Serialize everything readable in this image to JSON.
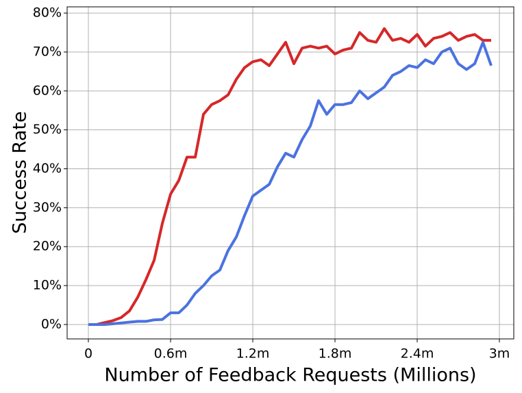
{
  "chart_data": {
    "type": "line",
    "xlabel": "Number of Feedback Requests (Millions)",
    "ylabel": "Success Rate",
    "x": [
      0,
      0.06,
      0.12,
      0.18,
      0.24,
      0.3,
      0.36,
      0.42,
      0.48,
      0.54,
      0.6,
      0.66,
      0.72,
      0.78,
      0.84,
      0.9,
      0.96,
      1.02,
      1.08,
      1.14,
      1.2,
      1.26,
      1.32,
      1.38,
      1.44,
      1.5,
      1.56,
      1.62,
      1.68,
      1.74,
      1.8,
      1.86,
      1.92,
      1.98,
      2.04,
      2.1,
      2.16,
      2.22,
      2.28,
      2.34,
      2.4,
      2.46,
      2.52,
      2.58,
      2.64,
      2.7,
      2.76,
      2.82,
      2.88,
      2.94
    ],
    "series": [
      {
        "color": "#d62728",
        "values": [
          0,
          0,
          0.5,
          1,
          1.8,
          3.5,
          7,
          11.5,
          16.5,
          26,
          33.5,
          37,
          43,
          43,
          54,
          56.5,
          57.5,
          59,
          63,
          66,
          67.5,
          68,
          66.5,
          69.5,
          72.5,
          67,
          71,
          71.5,
          71,
          71.5,
          69.5,
          70.5,
          71,
          75,
          73,
          72.5,
          76,
          73,
          73.5,
          72.5,
          74.5,
          71.5,
          73.5,
          74,
          75,
          73,
          74,
          74.5,
          73,
          73
        ]
      },
      {
        "color": "#4b72e0",
        "values": [
          0,
          0,
          0,
          0.2,
          0.4,
          0.6,
          0.8,
          0.8,
          1.2,
          1.3,
          3,
          3,
          5,
          8,
          10,
          12.5,
          14,
          19,
          22.5,
          28,
          33,
          34.5,
          36,
          40.5,
          44,
          43,
          47.5,
          51,
          57.5,
          54,
          56.5,
          56.5,
          57,
          60,
          58,
          59.5,
          61,
          64,
          65,
          66.5,
          66,
          68,
          67,
          70,
          71,
          67,
          65.5,
          67,
          72.5,
          66.5
        ]
      }
    ],
    "xlim": [
      -0.155,
      3.105
    ],
    "xticks": [
      0,
      {
        "value": 0.6,
        "label": "0.6m"
      },
      {
        "value": 1.2,
        "label": "1.2m"
      },
      {
        "value": 1.8,
        "label": "1.8m"
      },
      {
        "value": 2.4,
        "label": "2.4m"
      },
      {
        "value": 3,
        "label": "3m"
      }
    ],
    "ylim": [
      -3.7,
      81.6
    ],
    "yticks": [
      {
        "value": 0,
        "label": "0%"
      },
      {
        "value": 10,
        "label": "10%"
      },
      {
        "value": 20,
        "label": "20%"
      },
      {
        "value": 30,
        "label": "30%"
      },
      {
        "value": 40,
        "label": "40%"
      },
      {
        "value": 50,
        "label": "50%"
      },
      {
        "value": 60,
        "label": "60%"
      },
      {
        "value": 70,
        "label": "70%"
      },
      {
        "value": 80,
        "label": "80%"
      }
    ],
    "grid": true
  }
}
